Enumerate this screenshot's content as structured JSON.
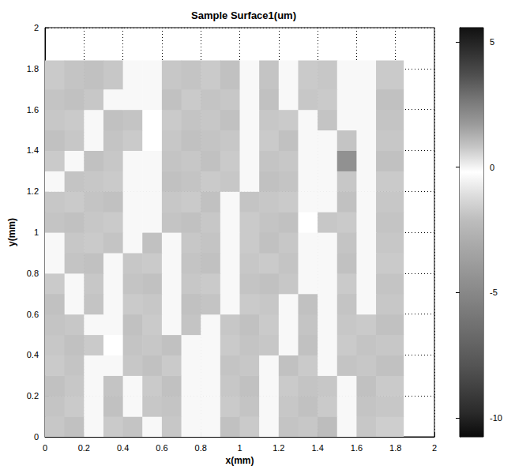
{
  "chart_data": {
    "type": "heatmap",
    "title": "Sample Surface1(um)",
    "x_label": "x(mm)",
    "y_label": "y(mm)",
    "x": [
      0,
      0.1,
      0.2,
      0.3,
      0.4,
      0.5,
      0.6,
      0.7,
      0.8,
      0.9,
      1.0,
      1.1,
      1.2,
      1.3,
      1.4,
      1.5,
      1.6,
      1.7,
      1.84
    ],
    "y": [
      0,
      0.1,
      0.2,
      0.3,
      0.4,
      0.5,
      0.6,
      0.7,
      0.8,
      0.9,
      1.0,
      1.1,
      1.2,
      1.3,
      1.4,
      1.5,
      1.6,
      1.7,
      1.84
    ],
    "z": [
      [
        -1.8,
        -2.0,
        -0.4,
        -1.7,
        -1.9,
        -0.4,
        -1.8,
        -0.4,
        -0.4,
        -2.0,
        -1.7,
        -0.4,
        -1.9,
        -1.8,
        -2.1,
        -0.4,
        -1.8,
        -1.6
      ],
      [
        -1.9,
        -1.7,
        -0.4,
        -2.0,
        -0.4,
        -1.8,
        -1.9,
        -0.4,
        -0.4,
        -1.7,
        -1.9,
        -0.4,
        -1.8,
        -2.0,
        -1.7,
        -0.4,
        -1.9,
        -1.8
      ],
      [
        -2.0,
        -1.8,
        -0.4,
        -1.9,
        -0.4,
        -1.7,
        -2.0,
        -0.4,
        -0.4,
        -1.8,
        -2.0,
        -0.4,
        -1.7,
        -1.9,
        -1.8,
        -0.4,
        -2.0,
        -1.7
      ],
      [
        -1.7,
        -1.9,
        -0.4,
        -0.4,
        -1.8,
        -2.0,
        -1.7,
        -0.4,
        -0.4,
        -1.9,
        -1.8,
        -0.4,
        -2.0,
        -1.7,
        -0.4,
        -1.9,
        -1.8,
        -2.0
      ],
      [
        -1.8,
        -2.0,
        -1.7,
        -0.2,
        -1.9,
        -1.8,
        -2.0,
        -0.4,
        -0.4,
        -1.7,
        -1.9,
        -1.8,
        -0.4,
        -2.0,
        -0.4,
        -1.7,
        -1.9,
        -1.8
      ],
      [
        -1.9,
        -1.8,
        -0.4,
        -0.4,
        -2.0,
        -1.7,
        -0.4,
        -1.9,
        -0.4,
        -1.8,
        -2.0,
        -1.7,
        -0.4,
        -1.9,
        -0.4,
        -1.8,
        -1.7,
        -2.0
      ],
      [
        -2.0,
        -0.4,
        -1.9,
        -0.4,
        -1.7,
        -1.8,
        -0.4,
        -2.0,
        -1.9,
        -0.4,
        -1.7,
        -1.8,
        -0.4,
        -2.0,
        -0.4,
        -1.9,
        -0.4,
        -1.8
      ],
      [
        -1.7,
        -0.4,
        -1.8,
        -0.4,
        -1.9,
        -2.0,
        -0.4,
        -1.8,
        -1.7,
        -0.4,
        -1.9,
        -2.0,
        -1.8,
        -0.4,
        -0.4,
        -1.7,
        -0.4,
        -1.9
      ],
      [
        -0.4,
        -1.9,
        -2.0,
        -0.4,
        -1.8,
        -1.7,
        -0.4,
        -1.9,
        -2.0,
        -0.4,
        -1.8,
        -1.7,
        -1.9,
        -0.4,
        -0.4,
        -2.0,
        -0.4,
        -1.7
      ],
      [
        -0.4,
        -1.8,
        -1.7,
        -1.9,
        -0.4,
        -2.0,
        -0.4,
        -1.8,
        -1.9,
        -0.4,
        -1.7,
        -2.0,
        -1.8,
        -0.4,
        -0.4,
        -1.9,
        -0.4,
        -1.8
      ],
      [
        -1.9,
        -2.0,
        -1.8,
        -1.7,
        -0.4,
        -0.4,
        -1.9,
        -2.0,
        -1.8,
        -0.4,
        -1.7,
        -1.9,
        -2.0,
        -0.2,
        -1.8,
        -1.7,
        -0.4,
        -1.9
      ],
      [
        -1.8,
        -1.7,
        -1.9,
        -2.0,
        -0.4,
        -0.4,
        -1.8,
        -1.7,
        -2.0,
        -0.4,
        -1.9,
        -1.8,
        -1.7,
        -0.4,
        -0.4,
        -2.0,
        -0.4,
        -1.8
      ],
      [
        -0.4,
        -1.9,
        -1.8,
        -1.7,
        -0.4,
        -0.4,
        -2.0,
        -1.9,
        -1.7,
        -1.8,
        -0.4,
        -2.0,
        -1.9,
        -0.4,
        -0.4,
        -1.8,
        -0.4,
        -1.7
      ],
      [
        -1.7,
        -0.4,
        -2.0,
        -1.8,
        -0.4,
        -0.4,
        -1.9,
        -1.8,
        -2.0,
        -1.7,
        -0.4,
        -1.9,
        -1.8,
        -0.4,
        -0.4,
        -4.5,
        -0.4,
        -2.0
      ],
      [
        -2.0,
        -1.8,
        -0.4,
        -1.9,
        -1.7,
        -0.2,
        -1.8,
        -2.0,
        -1.9,
        -1.8,
        -0.4,
        -1.7,
        -2.0,
        -0.4,
        -0.4,
        -1.9,
        -0.4,
        -1.8
      ],
      [
        -1.8,
        -1.7,
        -0.4,
        -2.0,
        -1.9,
        -0.2,
        -1.7,
        -1.9,
        -1.8,
        -2.0,
        -0.4,
        -1.8,
        -1.7,
        -0.4,
        -1.9,
        -0.4,
        -0.4,
        -1.9
      ],
      [
        -1.9,
        -2.0,
        -1.8,
        -0.4,
        -0.4,
        -0.4,
        -2.0,
        -1.7,
        -1.9,
        -1.8,
        -0.4,
        -2.0,
        -0.4,
        -1.8,
        -1.7,
        -0.4,
        -0.4,
        -2.0
      ],
      [
        -1.7,
        -1.9,
        -2.0,
        -1.8,
        -0.4,
        -0.4,
        -1.8,
        -1.9,
        -1.7,
        -2.0,
        -0.4,
        -1.9,
        -0.4,
        -1.7,
        -1.8,
        -0.4,
        -0.4,
        -1.7
      ]
    ],
    "xlim": [
      0,
      2
    ],
    "ylim": [
      0,
      2
    ],
    "xticks": [
      0,
      0.2,
      0.4,
      0.6,
      0.8,
      1,
      1.2,
      1.4,
      1.6,
      1.8,
      2
    ],
    "yticks": [
      0,
      0.2,
      0.4,
      0.6,
      0.8,
      1,
      1.2,
      1.4,
      1.6,
      1.8,
      2
    ],
    "grid": true,
    "colorbar_lim": [
      -10.75,
      5.56
    ],
    "colorbar_ticks": [
      -10,
      -5,
      0,
      5
    ]
  }
}
